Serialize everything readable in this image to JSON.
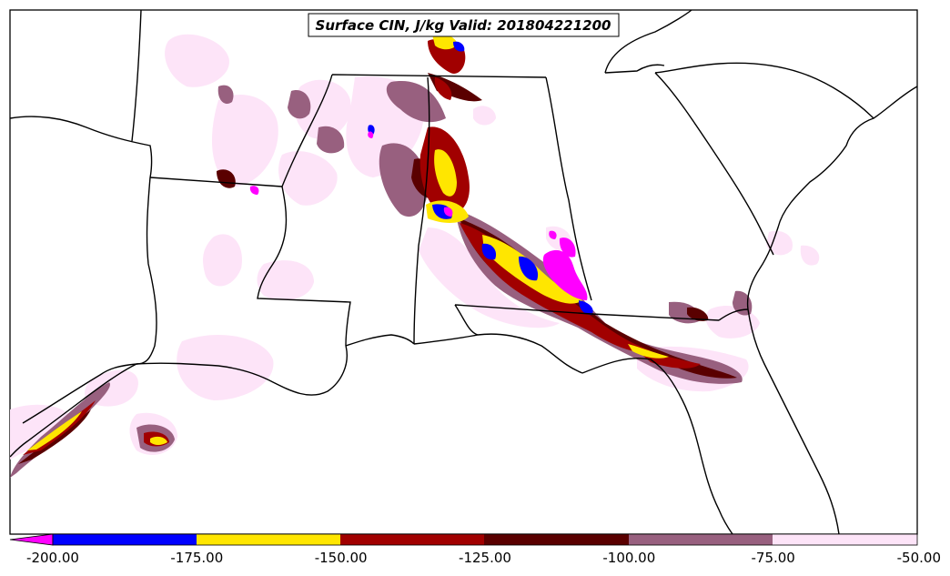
{
  "title": "Surface CIN, J/kg Valid: 201804221200",
  "colorbar": {
    "labels": [
      "-200.00",
      "-175.00",
      "-150.00",
      "-125.00",
      "-100.00",
      "-75.00",
      "-50.00"
    ],
    "colors": {
      "extend_low": "#ff00ff",
      "bin_200_175": "#0000ff",
      "bin_175_150": "#ffe600",
      "bin_150_125": "#a10000",
      "bin_125_100": "#5a0000",
      "bin_100_75": "#98607f",
      "bin_75_50": "#fde4f8"
    }
  },
  "style": {
    "background": "#ffffff",
    "borders": "#000000"
  }
}
